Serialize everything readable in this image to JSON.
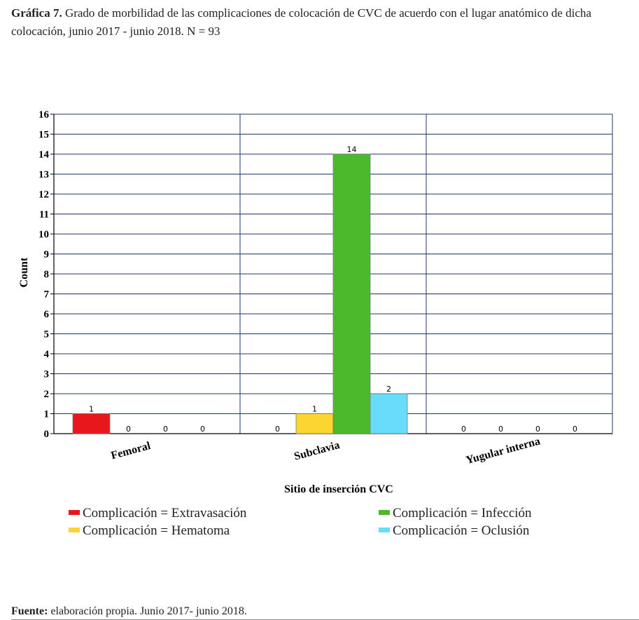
{
  "caption": {
    "label": "Gráfica 7.",
    "text": "Grado de morbilidad de las complicaciones de colocación de CVC de acuerdo con el lugar anatómico de dicha colocación, junio 2017 - junio 2018. N = 93"
  },
  "source": {
    "label": "Fuente:",
    "text": "elaboración propia. Junio 2017- junio 2018."
  },
  "chart_data": {
    "type": "bar",
    "categories": [
      "Femoral",
      "Subclavia",
      "Yugular interna"
    ],
    "series": [
      {
        "name": "Complicación = Extravasación",
        "color": "#e8171b",
        "values": [
          1,
          0,
          0
        ]
      },
      {
        "name": "Complicación = Hematoma",
        "color": "#fcd531",
        "values": [
          0,
          1,
          0
        ]
      },
      {
        "name": "Complicación = Infección",
        "color": "#4cb82c",
        "values": [
          0,
          14,
          0
        ]
      },
      {
        "name": "Complicación = Oclusión",
        "color": "#69dcfc",
        "values": [
          0,
          2,
          0
        ]
      }
    ],
    "xlabel": "Sitio de inserción CVC",
    "ylabel": "Count",
    "ylim": [
      0,
      16
    ],
    "yticks": [
      0,
      1,
      2,
      3,
      4,
      5,
      6,
      7,
      8,
      9,
      10,
      11,
      12,
      13,
      14,
      15,
      16
    ],
    "grid": true,
    "legend_position": "bottom",
    "grid_color": "#1f3864"
  }
}
